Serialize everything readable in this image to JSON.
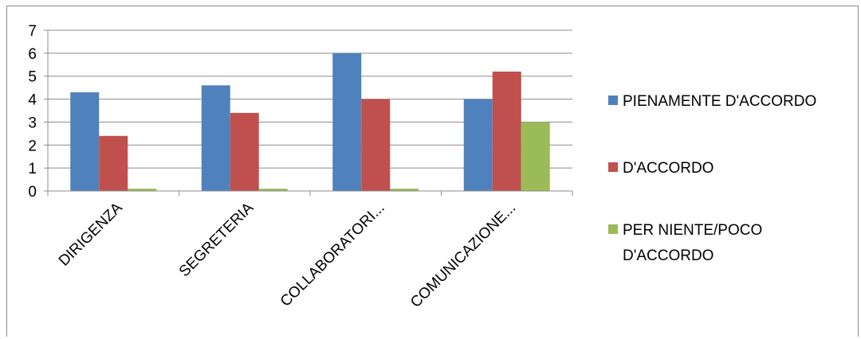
{
  "chart_data": {
    "type": "bar",
    "title": "",
    "xlabel": "",
    "ylabel": "",
    "categories": [
      "DIRIGENZA",
      "SEGRETERIA",
      "COLLABORATORI...",
      "COMUNICAZIONE..."
    ],
    "series": [
      {
        "name": "PIENAMENTE D'ACCORDO",
        "color": "#4F81BD",
        "values": [
          4.3,
          4.6,
          6.0,
          4.0
        ]
      },
      {
        "name": "D'ACCORDO",
        "color": "#C0504D",
        "values": [
          2.4,
          3.4,
          4.0,
          5.2
        ]
      },
      {
        "name": "PER NIENTE/POCO D'ACCORDO",
        "color": "#9BBB59",
        "values": [
          0.1,
          0.1,
          0.1,
          3.0
        ]
      }
    ],
    "ylim": [
      0,
      7
    ],
    "yticks": [
      0,
      1,
      2,
      3,
      4,
      5,
      6,
      7
    ],
    "grid": true,
    "legend": "right"
  }
}
